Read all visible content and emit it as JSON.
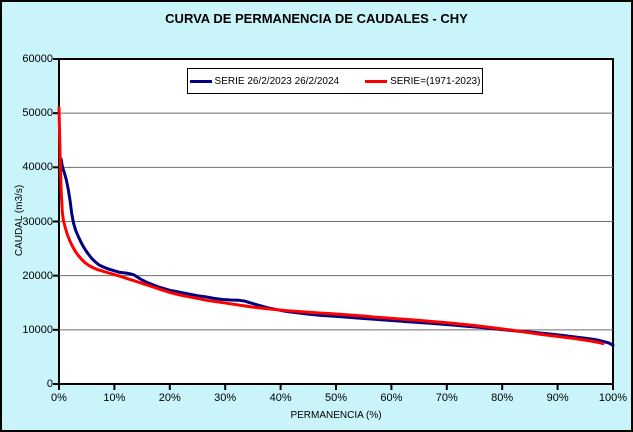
{
  "title": "CURVA DE PERMANENCIA DE CAUDALES - CHY",
  "colors": {
    "figure_background": "#C9F4F9",
    "plot_background": "#FFFFFF",
    "frame": "#000000",
    "gridline": "#6E6E6E",
    "series_blue": "#000080",
    "series_red": "#FF0000"
  },
  "legend": {
    "position": "top-center",
    "entries": [
      {
        "label": "SERIE 26/2/2023 26/2/2024",
        "color": "#000080"
      },
      {
        "label": "SERIE=(1971-2023)",
        "color": "#FF0000"
      }
    ]
  },
  "axes": {
    "x_title": "PERMANENCIA (%)",
    "y_title": "CAUDAL (m3/s)",
    "x_tick_labels": [
      "0%",
      "10%",
      "20%",
      "30%",
      "40%",
      "50%",
      "60%",
      "70%",
      "80%",
      "90%",
      "100%"
    ],
    "y_tick_labels": [
      "0",
      "10000",
      "20000",
      "30000",
      "40000",
      "50000",
      "60000"
    ]
  },
  "chart_data": {
    "type": "line",
    "title": "CURVA DE PERMANENCIA DE CAUDALES - CHY",
    "xlabel": "PERMANENCIA (%)",
    "ylabel": "CAUDAL (m3/s)",
    "xlim": [
      0,
      100
    ],
    "ylim": [
      0,
      60000
    ],
    "x_ticks": [
      0,
      10,
      20,
      30,
      40,
      50,
      60,
      70,
      80,
      90,
      100
    ],
    "y_ticks": [
      0,
      10000,
      20000,
      30000,
      40000,
      50000,
      60000
    ],
    "grid": "horizontal-only",
    "legend_position": "top-center",
    "series": [
      {
        "name": "SERIE 26/2/2023 26/2/2024",
        "color": "#000080",
        "points": [
          [
            0.4,
            41500
          ],
          [
            0.6,
            40200
          ],
          [
            0.9,
            39200
          ],
          [
            1.3,
            37800
          ],
          [
            1.7,
            35800
          ],
          [
            2.0,
            33800
          ],
          [
            2.3,
            31500
          ],
          [
            2.6,
            29800
          ],
          [
            3.0,
            28400
          ],
          [
            3.5,
            27200
          ],
          [
            4.0,
            26100
          ],
          [
            4.5,
            25200
          ],
          [
            5.0,
            24400
          ],
          [
            5.5,
            23700
          ],
          [
            6.0,
            23100
          ],
          [
            6.6,
            22500
          ],
          [
            7.2,
            22000
          ],
          [
            8.0,
            21600
          ],
          [
            9.0,
            21200
          ],
          [
            10.0,
            20900
          ],
          [
            11.0,
            20600
          ],
          [
            12.0,
            20500
          ],
          [
            13.0,
            20300
          ],
          [
            13.6,
            20100
          ],
          [
            14.2,
            19700
          ],
          [
            15.0,
            19200
          ],
          [
            16.0,
            18700
          ],
          [
            17.0,
            18300
          ],
          [
            18.0,
            17900
          ],
          [
            19.0,
            17600
          ],
          [
            20.0,
            17300
          ],
          [
            21.0,
            17100
          ],
          [
            22.0,
            16900
          ],
          [
            23.5,
            16600
          ],
          [
            25.0,
            16300
          ],
          [
            26.5,
            16100
          ],
          [
            28.0,
            15800
          ],
          [
            29.5,
            15600
          ],
          [
            31.0,
            15500
          ],
          [
            32.5,
            15450
          ],
          [
            33.5,
            15300
          ],
          [
            34.5,
            15000
          ],
          [
            35.5,
            14700
          ],
          [
            36.5,
            14400
          ],
          [
            37.5,
            14100
          ],
          [
            38.5,
            13900
          ],
          [
            39.5,
            13700
          ],
          [
            41.0,
            13400
          ],
          [
            43.0,
            13150
          ],
          [
            45.0,
            12900
          ],
          [
            47.0,
            12700
          ],
          [
            49.0,
            12550
          ],
          [
            51.0,
            12400
          ],
          [
            53.0,
            12250
          ],
          [
            55.0,
            12100
          ],
          [
            57.0,
            11950
          ],
          [
            59.0,
            11800
          ],
          [
            61.0,
            11650
          ],
          [
            63.0,
            11500
          ],
          [
            65.0,
            11350
          ],
          [
            67.0,
            11200
          ],
          [
            69.0,
            11050
          ],
          [
            71.0,
            10900
          ],
          [
            73.0,
            10700
          ],
          [
            75.0,
            10550
          ],
          [
            77.0,
            10350
          ],
          [
            79.0,
            10150
          ],
          [
            81.0,
            9950
          ],
          [
            83.0,
            9750
          ],
          [
            85.0,
            9600
          ],
          [
            87.0,
            9400
          ],
          [
            89.0,
            9200
          ],
          [
            91.0,
            8950
          ],
          [
            93.0,
            8700
          ],
          [
            95.0,
            8450
          ],
          [
            96.5,
            8250
          ],
          [
            97.5,
            8050
          ],
          [
            98.5,
            7800
          ],
          [
            99.3,
            7550
          ],
          [
            99.8,
            7250
          ],
          [
            100,
            7150
          ]
        ]
      },
      {
        "name": "SERIE=(1971-2023)",
        "color": "#FF0000",
        "points": [
          [
            0,
            51000
          ],
          [
            0.1,
            46000
          ],
          [
            0.25,
            40000
          ],
          [
            0.4,
            35500
          ],
          [
            0.6,
            31800
          ],
          [
            0.8,
            30200
          ],
          [
            1.1,
            29000
          ],
          [
            1.5,
            27600
          ],
          [
            2.0,
            26300
          ],
          [
            2.5,
            25300
          ],
          [
            3.0,
            24400
          ],
          [
            3.5,
            23700
          ],
          [
            4.0,
            23100
          ],
          [
            4.7,
            22400
          ],
          [
            5.5,
            21800
          ],
          [
            6.3,
            21400
          ],
          [
            7.0,
            21100
          ],
          [
            8.0,
            20800
          ],
          [
            9.0,
            20500
          ],
          [
            10.0,
            20200
          ],
          [
            11.0,
            19900
          ],
          [
            12.5,
            19400
          ],
          [
            14.0,
            18900
          ],
          [
            15.5,
            18400
          ],
          [
            17.0,
            17900
          ],
          [
            18.5,
            17400
          ],
          [
            20.0,
            16900
          ],
          [
            21.5,
            16500
          ],
          [
            23.0,
            16200
          ],
          [
            25.0,
            15800
          ],
          [
            27.0,
            15400
          ],
          [
            29.0,
            15100
          ],
          [
            31.0,
            14800
          ],
          [
            33.0,
            14500
          ],
          [
            35.0,
            14200
          ],
          [
            37.0,
            13950
          ],
          [
            39.0,
            13750
          ],
          [
            41.0,
            13550
          ],
          [
            43.0,
            13400
          ],
          [
            45.0,
            13250
          ],
          [
            47.0,
            13100
          ],
          [
            49.0,
            13000
          ],
          [
            51.0,
            12850
          ],
          [
            53.0,
            12700
          ],
          [
            55.0,
            12550
          ],
          [
            57.0,
            12350
          ],
          [
            59.0,
            12200
          ],
          [
            61.0,
            12050
          ],
          [
            63.0,
            11900
          ],
          [
            65.0,
            11750
          ],
          [
            67.0,
            11550
          ],
          [
            69.0,
            11400
          ],
          [
            71.0,
            11200
          ],
          [
            73.0,
            11000
          ],
          [
            75.0,
            10800
          ],
          [
            77.0,
            10550
          ],
          [
            79.0,
            10300
          ],
          [
            81.0,
            10050
          ],
          [
            83.0,
            9750
          ],
          [
            85.0,
            9450
          ],
          [
            87.0,
            9150
          ],
          [
            89.0,
            8900
          ],
          [
            91.0,
            8650
          ],
          [
            93.0,
            8400
          ],
          [
            95.0,
            8100
          ],
          [
            96.5,
            7850
          ],
          [
            97.5,
            7650
          ],
          [
            98.2,
            7450
          ]
        ]
      }
    ]
  }
}
